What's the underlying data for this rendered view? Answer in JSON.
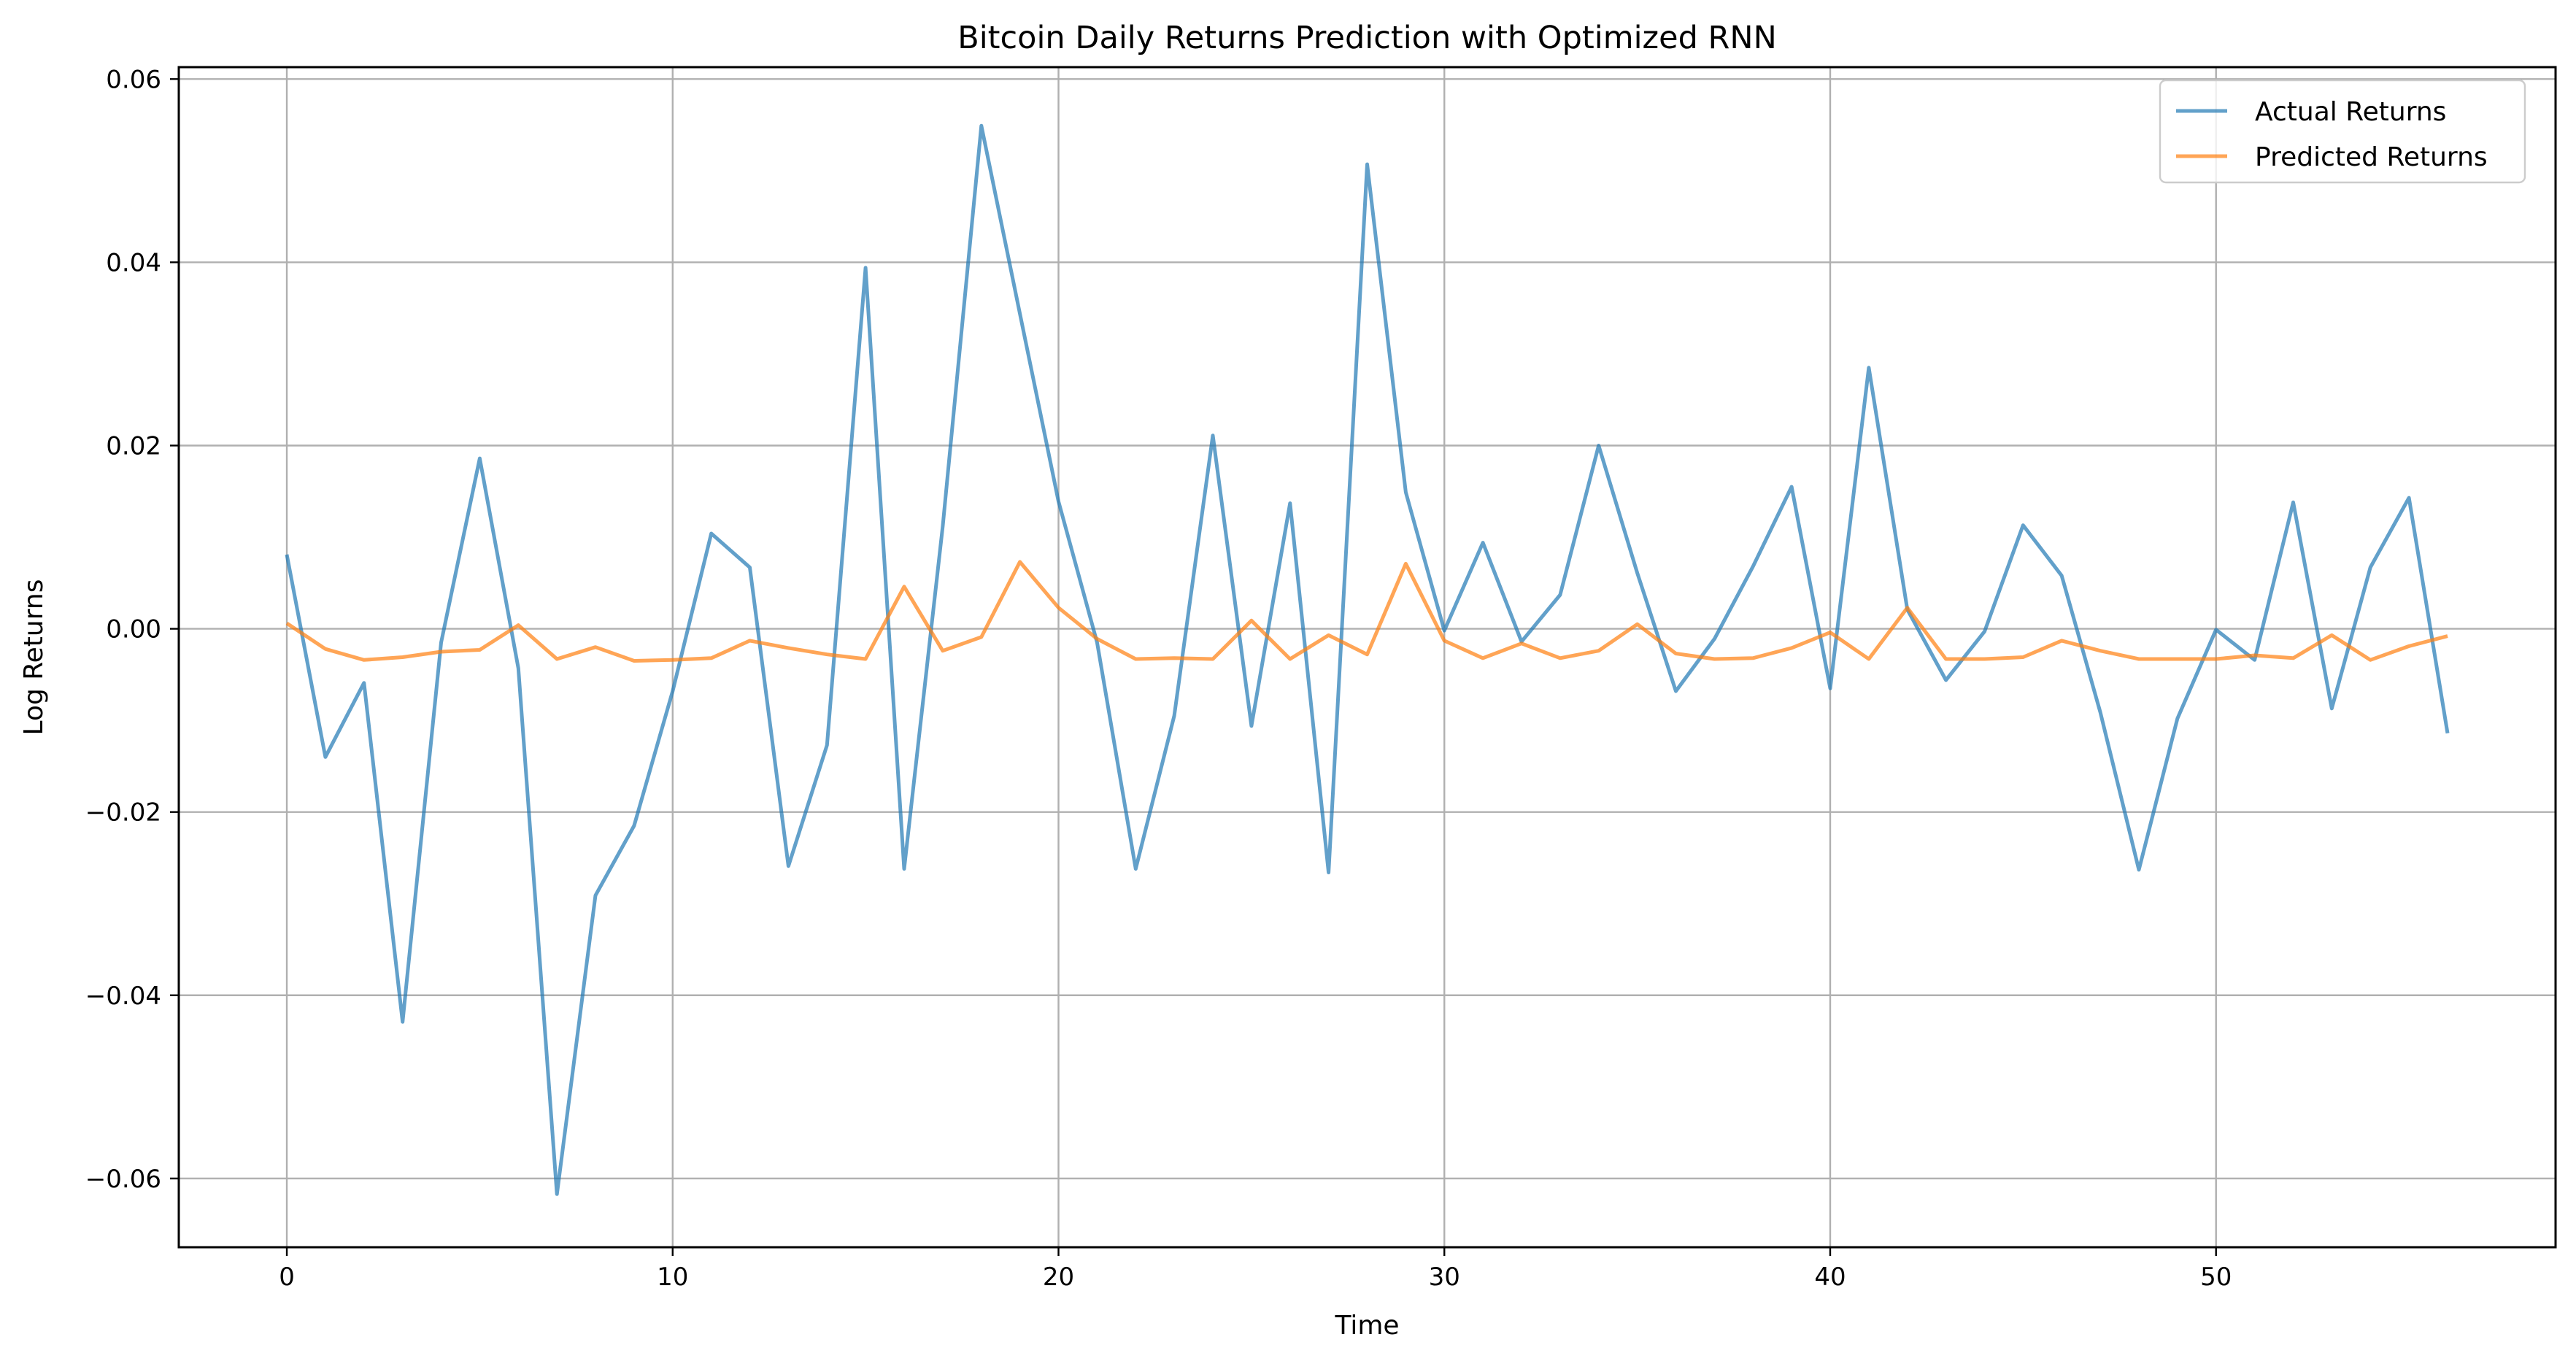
{
  "chart_data": {
    "type": "line",
    "title": "Bitcoin Daily Returns Prediction with Optimized RNN",
    "xlabel": "Time",
    "ylabel": "Log Returns",
    "xlim": [
      -2.8,
      58.8
    ],
    "ylim": [
      -0.0675,
      0.0613
    ],
    "xticks": [
      0,
      10,
      20,
      30,
      40,
      50
    ],
    "xtick_labels": [
      "0",
      "10",
      "20",
      "30",
      "40",
      "50"
    ],
    "yticks": [
      0.06,
      0.04,
      0.02,
      0.0,
      -0.02,
      -0.04,
      -0.06
    ],
    "ytick_labels": [
      "0.06",
      "0.04",
      "0.02",
      "0.00",
      "−0.02",
      "−0.04",
      "−0.06"
    ],
    "grid": true,
    "legend_position": "top-right",
    "x": [
      0,
      1,
      2,
      3,
      4,
      5,
      6,
      7,
      8,
      9,
      10,
      11,
      12,
      13,
      14,
      15,
      16,
      17,
      18,
      19,
      20,
      21,
      22,
      23,
      24,
      25,
      26,
      27,
      28,
      29,
      30,
      31,
      32,
      33,
      34,
      35,
      36,
      37,
      38,
      39,
      40,
      41,
      42,
      43,
      44,
      45,
      46,
      47,
      48,
      49,
      50,
      51,
      52,
      53,
      54,
      55,
      56
    ],
    "series": [
      {
        "name": "Actual Returns",
        "color": "#1f77b4",
        "values": [
          0.0081,
          -0.014,
          -0.0059,
          -0.0429,
          -0.0015,
          0.0186,
          -0.0043,
          -0.0617,
          -0.0291,
          -0.0215,
          -0.0068,
          0.0104,
          0.0067,
          -0.0259,
          -0.0127,
          0.0394,
          -0.0262,
          0.0112,
          0.0549,
          0.0344,
          0.0139,
          -0.0015,
          -0.0262,
          -0.0095,
          0.0211,
          -0.0106,
          0.0137,
          -0.0266,
          0.0507,
          0.0149,
          -0.0002,
          0.0094,
          -0.0014,
          0.0037,
          0.02,
          0.0061,
          -0.0068,
          -0.0011,
          0.0068,
          0.0155,
          -0.0065,
          0.0285,
          0.0021,
          -0.0056,
          -0.0003,
          0.0113,
          0.0058,
          -0.0091,
          -0.0263,
          -0.0098,
          -0.0001,
          -0.0034,
          0.0138,
          -0.0087,
          0.0067,
          0.0143,
          -0.0114
        ]
      },
      {
        "name": "Predicted Returns",
        "color": "#ff7f0e",
        "values": [
          0.0006,
          -0.0022,
          -0.0034,
          -0.0031,
          -0.0025,
          -0.0023,
          0.0004,
          -0.0033,
          -0.002,
          -0.0035,
          -0.0034,
          -0.0032,
          -0.0013,
          -0.0021,
          -0.0028,
          -0.0033,
          0.0046,
          -0.0024,
          -0.0009,
          0.0073,
          0.0023,
          -0.0011,
          -0.0033,
          -0.0032,
          -0.0033,
          0.0009,
          -0.0033,
          -0.0007,
          -0.0028,
          0.0071,
          -0.0013,
          -0.0032,
          -0.0016,
          -0.0032,
          -0.0024,
          0.0005,
          -0.0027,
          -0.0033,
          -0.0032,
          -0.0021,
          -0.0004,
          -0.0033,
          0.0023,
          -0.0033,
          -0.0033,
          -0.0031,
          -0.0013,
          -0.0024,
          -0.0033,
          -0.0033,
          -0.0033,
          -0.0029,
          -0.0032,
          -0.0007,
          -0.0034,
          -0.0019,
          -0.0008
        ]
      }
    ]
  }
}
